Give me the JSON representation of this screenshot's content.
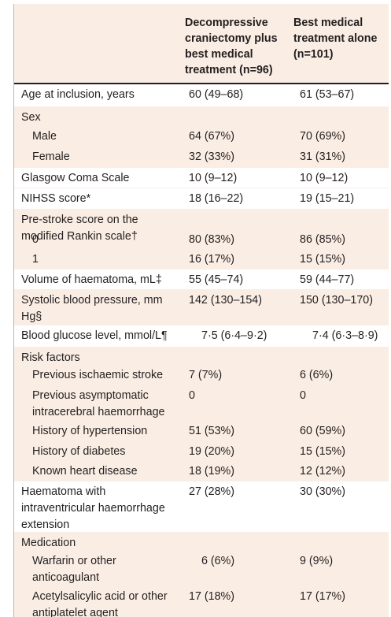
{
  "header": {
    "col1": "Decompressive craniectomy plus best medical treatment (n=96)",
    "col2": "Best medical treatment alone (n=101)"
  },
  "rows": [
    {
      "label": "Age at inclusion, years",
      "a": "60 (49–68)",
      "b": "61 (53–67)"
    },
    {
      "label": "Sex",
      "a": "",
      "b": ""
    },
    {
      "label": "Male",
      "a": "64 (67%)",
      "b": "70 (69%)"
    },
    {
      "label": "Female",
      "a": "32 (33%)",
      "b": "31 (31%)"
    },
    {
      "label": "Glasgow Coma Scale",
      "a": "10 (9–12)",
      "b": "10 (9–12)"
    },
    {
      "label": "NIHSS score*",
      "a": "18 (16–22)",
      "b": "19 (15–21)"
    },
    {
      "label": "Pre-stroke score on the modified Rankin scale†",
      "a": "",
      "b": ""
    },
    {
      "label": "0",
      "a": "80 (83%)",
      "b": "86 (85%)"
    },
    {
      "label": "1",
      "a": "16 (17%)",
      "b": "15 (15%)"
    },
    {
      "label": "Volume of haematoma, mL‡",
      "a": "55 (45–74)",
      "b": "59 (44–77)"
    },
    {
      "label": "Systolic blood pressure, mm Hg§",
      "a": "142 (130–154)",
      "b": "150 (130–170)"
    },
    {
      "label": "Blood glucose level, mmol/L¶",
      "a": "7·5 (6·4–9·2)",
      "b": "7·4 (6·3–8·9)"
    },
    {
      "label": "Risk factors",
      "a": "",
      "b": ""
    },
    {
      "label": "Previous ischaemic stroke",
      "a": "7 (7%)",
      "b": "6 (6%)"
    },
    {
      "label": "Previous asymptomatic intracerebral haemorrhage",
      "a": "0",
      "b": "0"
    },
    {
      "label": "History of hypertension",
      "a": "51 (53%)",
      "b": "60 (59%)"
    },
    {
      "label": "History of diabetes",
      "a": "19 (20%)",
      "b": "15 (15%)"
    },
    {
      "label": "Known heart disease",
      "a": "18 (19%)",
      "b": "12 (12%)"
    },
    {
      "label": "Haematoma with intraventricular haemorrhage extension",
      "a": "27 (28%)",
      "b": "30 (30%)"
    },
    {
      "label": "Medication",
      "a": "",
      "b": ""
    },
    {
      "label": "Warfarin or other anticoagulant",
      "a": "6 (6%)",
      "b": "9 (9%)"
    },
    {
      "label": "Acetylsalicylic acid or other antiplatelet agent",
      "a": "17 (18%)",
      "b": "17 (17%)"
    }
  ]
}
